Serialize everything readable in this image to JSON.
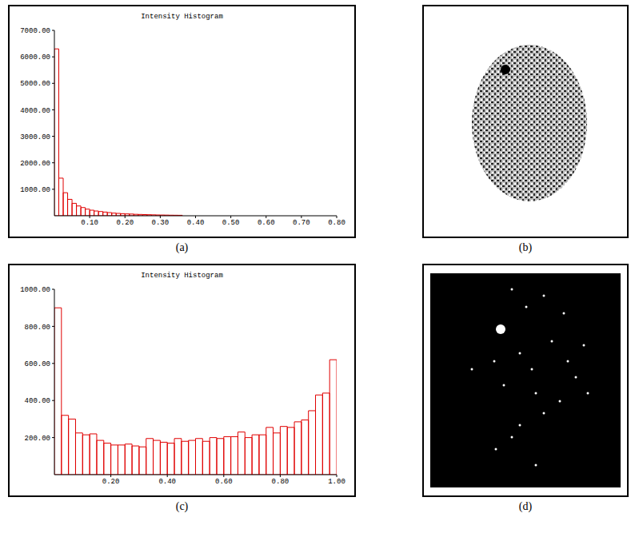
{
  "panels": [
    "(a)",
    "(b)",
    "(c)",
    "(d)"
  ],
  "chart_data": [
    {
      "type": "histogram",
      "title": "Intensity Histogram",
      "bins": [
        0,
        0.0125,
        0.025,
        0.0375,
        0.05,
        0.0625,
        0.075,
        0.0875,
        0.1,
        0.1125,
        0.125,
        0.1375,
        0.15,
        0.1625,
        0.175,
        0.1875,
        0.2,
        0.2125,
        0.225,
        0.2375,
        0.25,
        0.2625,
        0.275,
        0.2875,
        0.3,
        0.3125,
        0.325,
        0.3375,
        0.35,
        0.3625
      ],
      "values": [
        6300,
        1420,
        870,
        620,
        470,
        370,
        310,
        250,
        210,
        180,
        160,
        140,
        120,
        100,
        90,
        80,
        70,
        65,
        55,
        50,
        45,
        40,
        35,
        30,
        28,
        25,
        22,
        20,
        18
      ],
      "color": "#e00000",
      "xlim": [
        0,
        0.8
      ],
      "xticks": [
        {
          "value": 0.1,
          "label": "0.10"
        },
        {
          "value": 0.2,
          "label": "0.20"
        },
        {
          "value": 0.3,
          "label": "0.30"
        },
        {
          "value": 0.4,
          "label": "0.40"
        },
        {
          "value": 0.5,
          "label": "0.50"
        },
        {
          "value": 0.6,
          "label": "0.60"
        },
        {
          "value": 0.7,
          "label": "0.70"
        },
        {
          "value": 0.8,
          "label": "0.80"
        }
      ],
      "ylim": [
        0,
        7000
      ],
      "yticks": [
        {
          "value": 1000,
          "label": "1000.00"
        },
        {
          "value": 2000,
          "label": "2000.00"
        },
        {
          "value": 3000,
          "label": "3000.00"
        },
        {
          "value": 4000,
          "label": "4000.00"
        },
        {
          "value": 5000,
          "label": "5000.00"
        },
        {
          "value": 6000,
          "label": "6000.00"
        },
        {
          "value": 7000,
          "label": "7000.00"
        }
      ],
      "grid": false
    },
    {
      "type": "histogram",
      "title": "Intensity Histogram",
      "bins": [
        0,
        0.025,
        0.05,
        0.075,
        0.1,
        0.125,
        0.15,
        0.175,
        0.2,
        0.225,
        0.25,
        0.275,
        0.3,
        0.325,
        0.35,
        0.375,
        0.4,
        0.425,
        0.45,
        0.475,
        0.5,
        0.525,
        0.55,
        0.575,
        0.6,
        0.625,
        0.65,
        0.675,
        0.7,
        0.725,
        0.75,
        0.775,
        0.8,
        0.825,
        0.85,
        0.875,
        0.9,
        0.925,
        0.95,
        0.975,
        1
      ],
      "values": [
        900,
        320,
        300,
        225,
        215,
        220,
        185,
        170,
        160,
        160,
        165,
        155,
        150,
        195,
        185,
        175,
        170,
        195,
        180,
        185,
        195,
        180,
        200,
        195,
        205,
        205,
        230,
        200,
        215,
        215,
        255,
        225,
        260,
        255,
        285,
        295,
        345,
        430,
        440,
        620
      ],
      "color": "#e00000",
      "xlim": [
        0,
        1
      ],
      "xticks": [
        {
          "value": 0.2,
          "label": "0.20"
        },
        {
          "value": 0.4,
          "label": "0.40"
        },
        {
          "value": 0.6,
          "label": "0.60"
        },
        {
          "value": 0.8,
          "label": "0.80"
        },
        {
          "value": 1,
          "label": "1.00"
        }
      ],
      "ylim": [
        0,
        1000
      ],
      "yticks": [
        {
          "value": 200,
          "label": "200.00"
        },
        {
          "value": 400,
          "label": "400.00"
        },
        {
          "value": 600,
          "label": "600.00"
        },
        {
          "value": 800,
          "label": "800.00"
        },
        {
          "value": 1000,
          "label": "1000.00"
        }
      ],
      "grid": false
    }
  ]
}
